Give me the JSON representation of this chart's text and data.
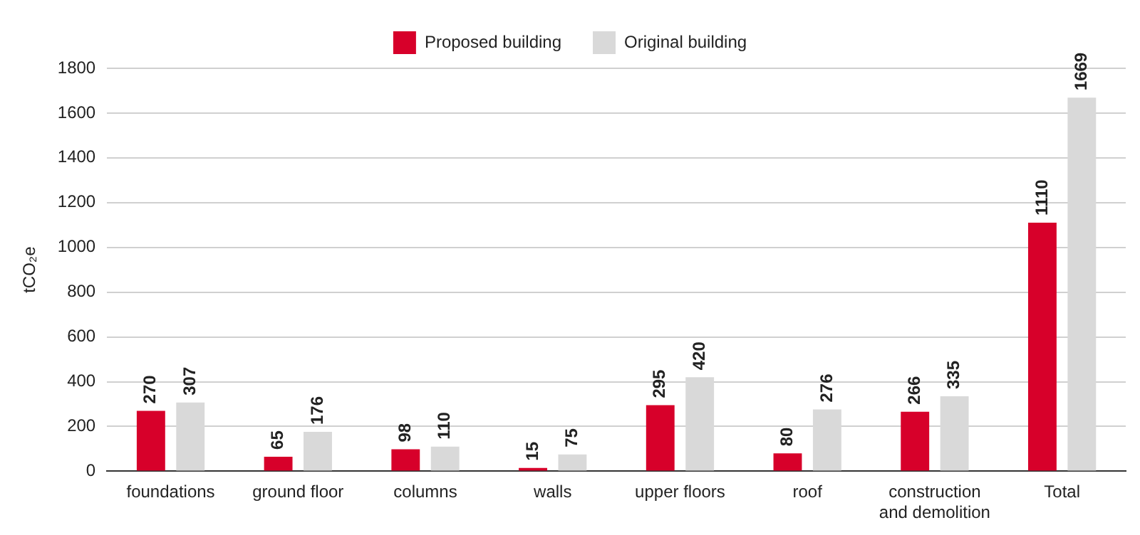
{
  "chart_data": {
    "type": "bar",
    "ylabel": "tCO₂e",
    "categories": [
      "foundations",
      "ground floor",
      "columns",
      "walls",
      "upper floors",
      "roof",
      "construction and demolition",
      "Total"
    ],
    "series": [
      {
        "name": "Proposed building",
        "color": "#d7002a",
        "values": [
          270,
          65,
          98,
          15,
          295,
          80,
          266,
          1110
        ]
      },
      {
        "name": "Original building",
        "color": "#d9d9d9",
        "values": [
          307,
          176,
          110,
          75,
          420,
          276,
          335,
          1669
        ]
      }
    ],
    "ylim": [
      0,
      1800
    ],
    "yticks": [
      0,
      200,
      400,
      600,
      800,
      1000,
      1200,
      1400,
      1600,
      1800
    ],
    "grid": "y",
    "legend": "top",
    "data_labels": true
  }
}
